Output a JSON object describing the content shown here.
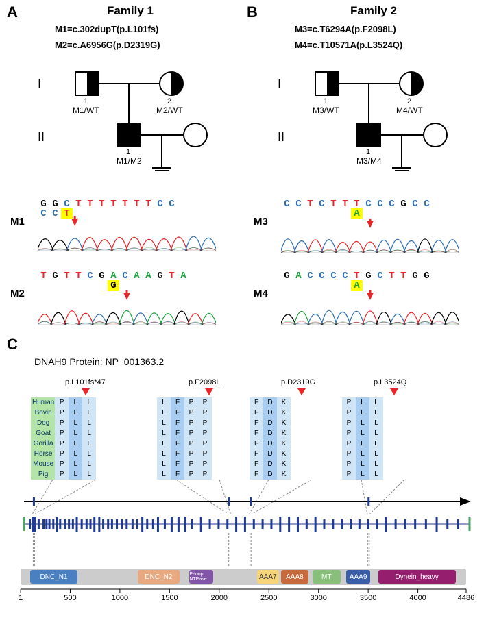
{
  "panelA_letter": "A",
  "panelB_letter": "B",
  "panelC_letter": "C",
  "family1": {
    "title": "Family 1",
    "m1": "M1=c.302dupT(p.L101fs)",
    "m2": "M2=c.A6956G(p.D2319G)",
    "gen1": "I",
    "gen2": "II",
    "geno_i1": "M1/WT",
    "geno_i2": "M2/WT",
    "geno_ii1": "M1/M2",
    "num1": "1",
    "num2": "2",
    "num_ii1": "1"
  },
  "family2": {
    "title": "Family 2",
    "m3": "M3=c.T6294A(p.F2098L)",
    "m4": "M4=c.T10571A(p.L3524Q)",
    "gen1": "I",
    "gen2": "II",
    "geno_i1": "M3/WT",
    "geno_i2": "M4/WT",
    "geno_ii1": "M3/M4",
    "num1": "1",
    "num2": "2",
    "num_ii1": "1"
  },
  "seq": {
    "m1_label": "M1",
    "m2_label": "M2",
    "m3_label": "M3",
    "m4_label": "M4",
    "m1_top": [
      "G",
      "G",
      "C",
      "T",
      "T",
      "T",
      "T",
      "T",
      "T",
      "T",
      "C",
      "C"
    ],
    "m1_bottom": [
      "C",
      "C"
    ],
    "m1_insert": "T",
    "m2_seq": [
      "T",
      "G",
      "T",
      "T",
      "C",
      "G",
      "A",
      "C",
      "A",
      "A",
      "G",
      "T",
      "A"
    ],
    "m2_insert": "G",
    "m3_seq": [
      "C",
      "C",
      "T",
      "C",
      "T",
      "T",
      "T",
      "C",
      "C",
      "C",
      "G",
      "C",
      "C"
    ],
    "m3_insert": "A",
    "m4_seq": [
      "G",
      "A",
      "C",
      "C",
      "C",
      "C",
      "T",
      "G",
      "C",
      "T",
      "T",
      "G",
      "G"
    ],
    "m4_insert": "A"
  },
  "colors": {
    "A": "#19a33a",
    "T": "#e8262a",
    "G": "#000000",
    "C": "#2f6fb5",
    "bg": "#ffffff"
  },
  "panelC": {
    "protein_title": "DNAH9 Protein: NP_001363.2",
    "species": [
      "Human",
      "Bovin",
      "Dog",
      "Goat",
      "Gorilla",
      "Horse",
      "Mouse",
      "Pig"
    ],
    "variants": [
      {
        "label": "p.L101fs*47",
        "cols": [
          [
            "P",
            "P",
            "P",
            "P",
            "P",
            "P",
            "P",
            "P"
          ],
          [
            "L",
            "L",
            "L",
            "L",
            "L",
            "L",
            "L",
            "L"
          ],
          [
            "L",
            "L",
            "L",
            "L",
            "L",
            "L",
            "L",
            "L"
          ]
        ]
      },
      {
        "label": "p.F2098L",
        "cols": [
          [
            "L",
            "L",
            "L",
            "L",
            "L",
            "L",
            "L",
            "L"
          ],
          [
            "F",
            "F",
            "F",
            "F",
            "F",
            "F",
            "F",
            "F"
          ],
          [
            "P",
            "P",
            "P",
            "P",
            "P",
            "P",
            "P",
            "P"
          ],
          [
            "P",
            "P",
            "P",
            "P",
            "P",
            "P",
            "P",
            "P"
          ]
        ]
      },
      {
        "label": "p.D2319G",
        "cols": [
          [
            "F",
            "F",
            "F",
            "F",
            "F",
            "F",
            "F",
            "F"
          ],
          [
            "D",
            "D",
            "D",
            "D",
            "D",
            "D",
            "D",
            "D"
          ],
          [
            "K",
            "K",
            "K",
            "K",
            "K",
            "K",
            "K",
            "K"
          ]
        ]
      },
      {
        "label": "p.L3524Q",
        "cols": [
          [
            "P",
            "P",
            "P",
            "P",
            "P",
            "P",
            "P",
            "P"
          ],
          [
            "L",
            "L",
            "L",
            "L",
            "L",
            "L",
            "L",
            "L"
          ],
          [
            "L",
            "L",
            "L",
            "L",
            "L",
            "L",
            "L",
            "L"
          ]
        ]
      }
    ],
    "domain_colors": {
      "bar_bg": "#cccccc",
      "dnc_n1": "#4a7fc1",
      "dnc_n2": "#e8a980",
      "ploop": "#8255a9",
      "aaa7": "#f5d47a",
      "aaa8": "#c76a3d",
      "mt": "#88c07b",
      "aaa9": "#3a5da8",
      "dynein": "#951f6e"
    },
    "domains": [
      {
        "name": "DNC_N1",
        "label": "DNC_N1",
        "start": 100,
        "end": 570,
        "color_key": "dnc_n1",
        "text_color": "#ffffff"
      },
      {
        "name": "DNC_N2",
        "label": "DNC_N2",
        "start": 1180,
        "end": 1600,
        "color_key": "dnc_n2",
        "text_color": "#ffffff"
      },
      {
        "name": "P-loop",
        "label": "P-loop NTPase",
        "start": 1700,
        "end": 1940,
        "color_key": "ploop",
        "text_color": "#ffffff",
        "small": true
      },
      {
        "name": "AAA7",
        "label": "AAA7",
        "start": 2380,
        "end": 2600,
        "color_key": "aaa7",
        "text_color": "#333333"
      },
      {
        "name": "AAA8",
        "label": "AAA8",
        "start": 2620,
        "end": 2900,
        "color_key": "aaa8",
        "text_color": "#ffffff"
      },
      {
        "name": "MT",
        "label": "MT",
        "start": 2940,
        "end": 3220,
        "color_key": "mt",
        "text_color": "#ffffff"
      },
      {
        "name": "AAA9",
        "label": "AAA9",
        "start": 3280,
        "end": 3520,
        "color_key": "aaa9",
        "text_color": "#ffffff"
      },
      {
        "name": "Dynein_heavy",
        "label": "Dynein_heavy",
        "start": 3600,
        "end": 4380,
        "color_key": "dynein",
        "text_color": "#ffffff"
      }
    ],
    "ruler_ticks": [
      "1",
      "500",
      "1000",
      "1500",
      "2000",
      "2500",
      "3000",
      "3500",
      "4000",
      "4486"
    ],
    "variant_aa_pos": [
      101,
      2098,
      2319,
      3524
    ],
    "exon_positions": [
      60,
      90,
      110,
      150,
      200,
      230,
      260,
      300,
      340,
      370,
      420,
      460,
      500,
      540,
      590,
      640,
      680,
      720,
      770,
      810,
      860,
      900,
      950,
      1000,
      1050,
      1110,
      1160,
      1210,
      1260,
      1320,
      1370,
      1440,
      1510,
      1580,
      1650,
      1720,
      1810,
      1900,
      1990,
      2080,
      2170,
      2260,
      2350,
      2440,
      2530,
      2620,
      2710,
      2800,
      2890,
      2980,
      3070,
      3160,
      3250,
      3340,
      3430,
      3520,
      3610,
      3700,
      3800,
      3900,
      4000,
      4110,
      4220,
      4330,
      4440
    ]
  }
}
